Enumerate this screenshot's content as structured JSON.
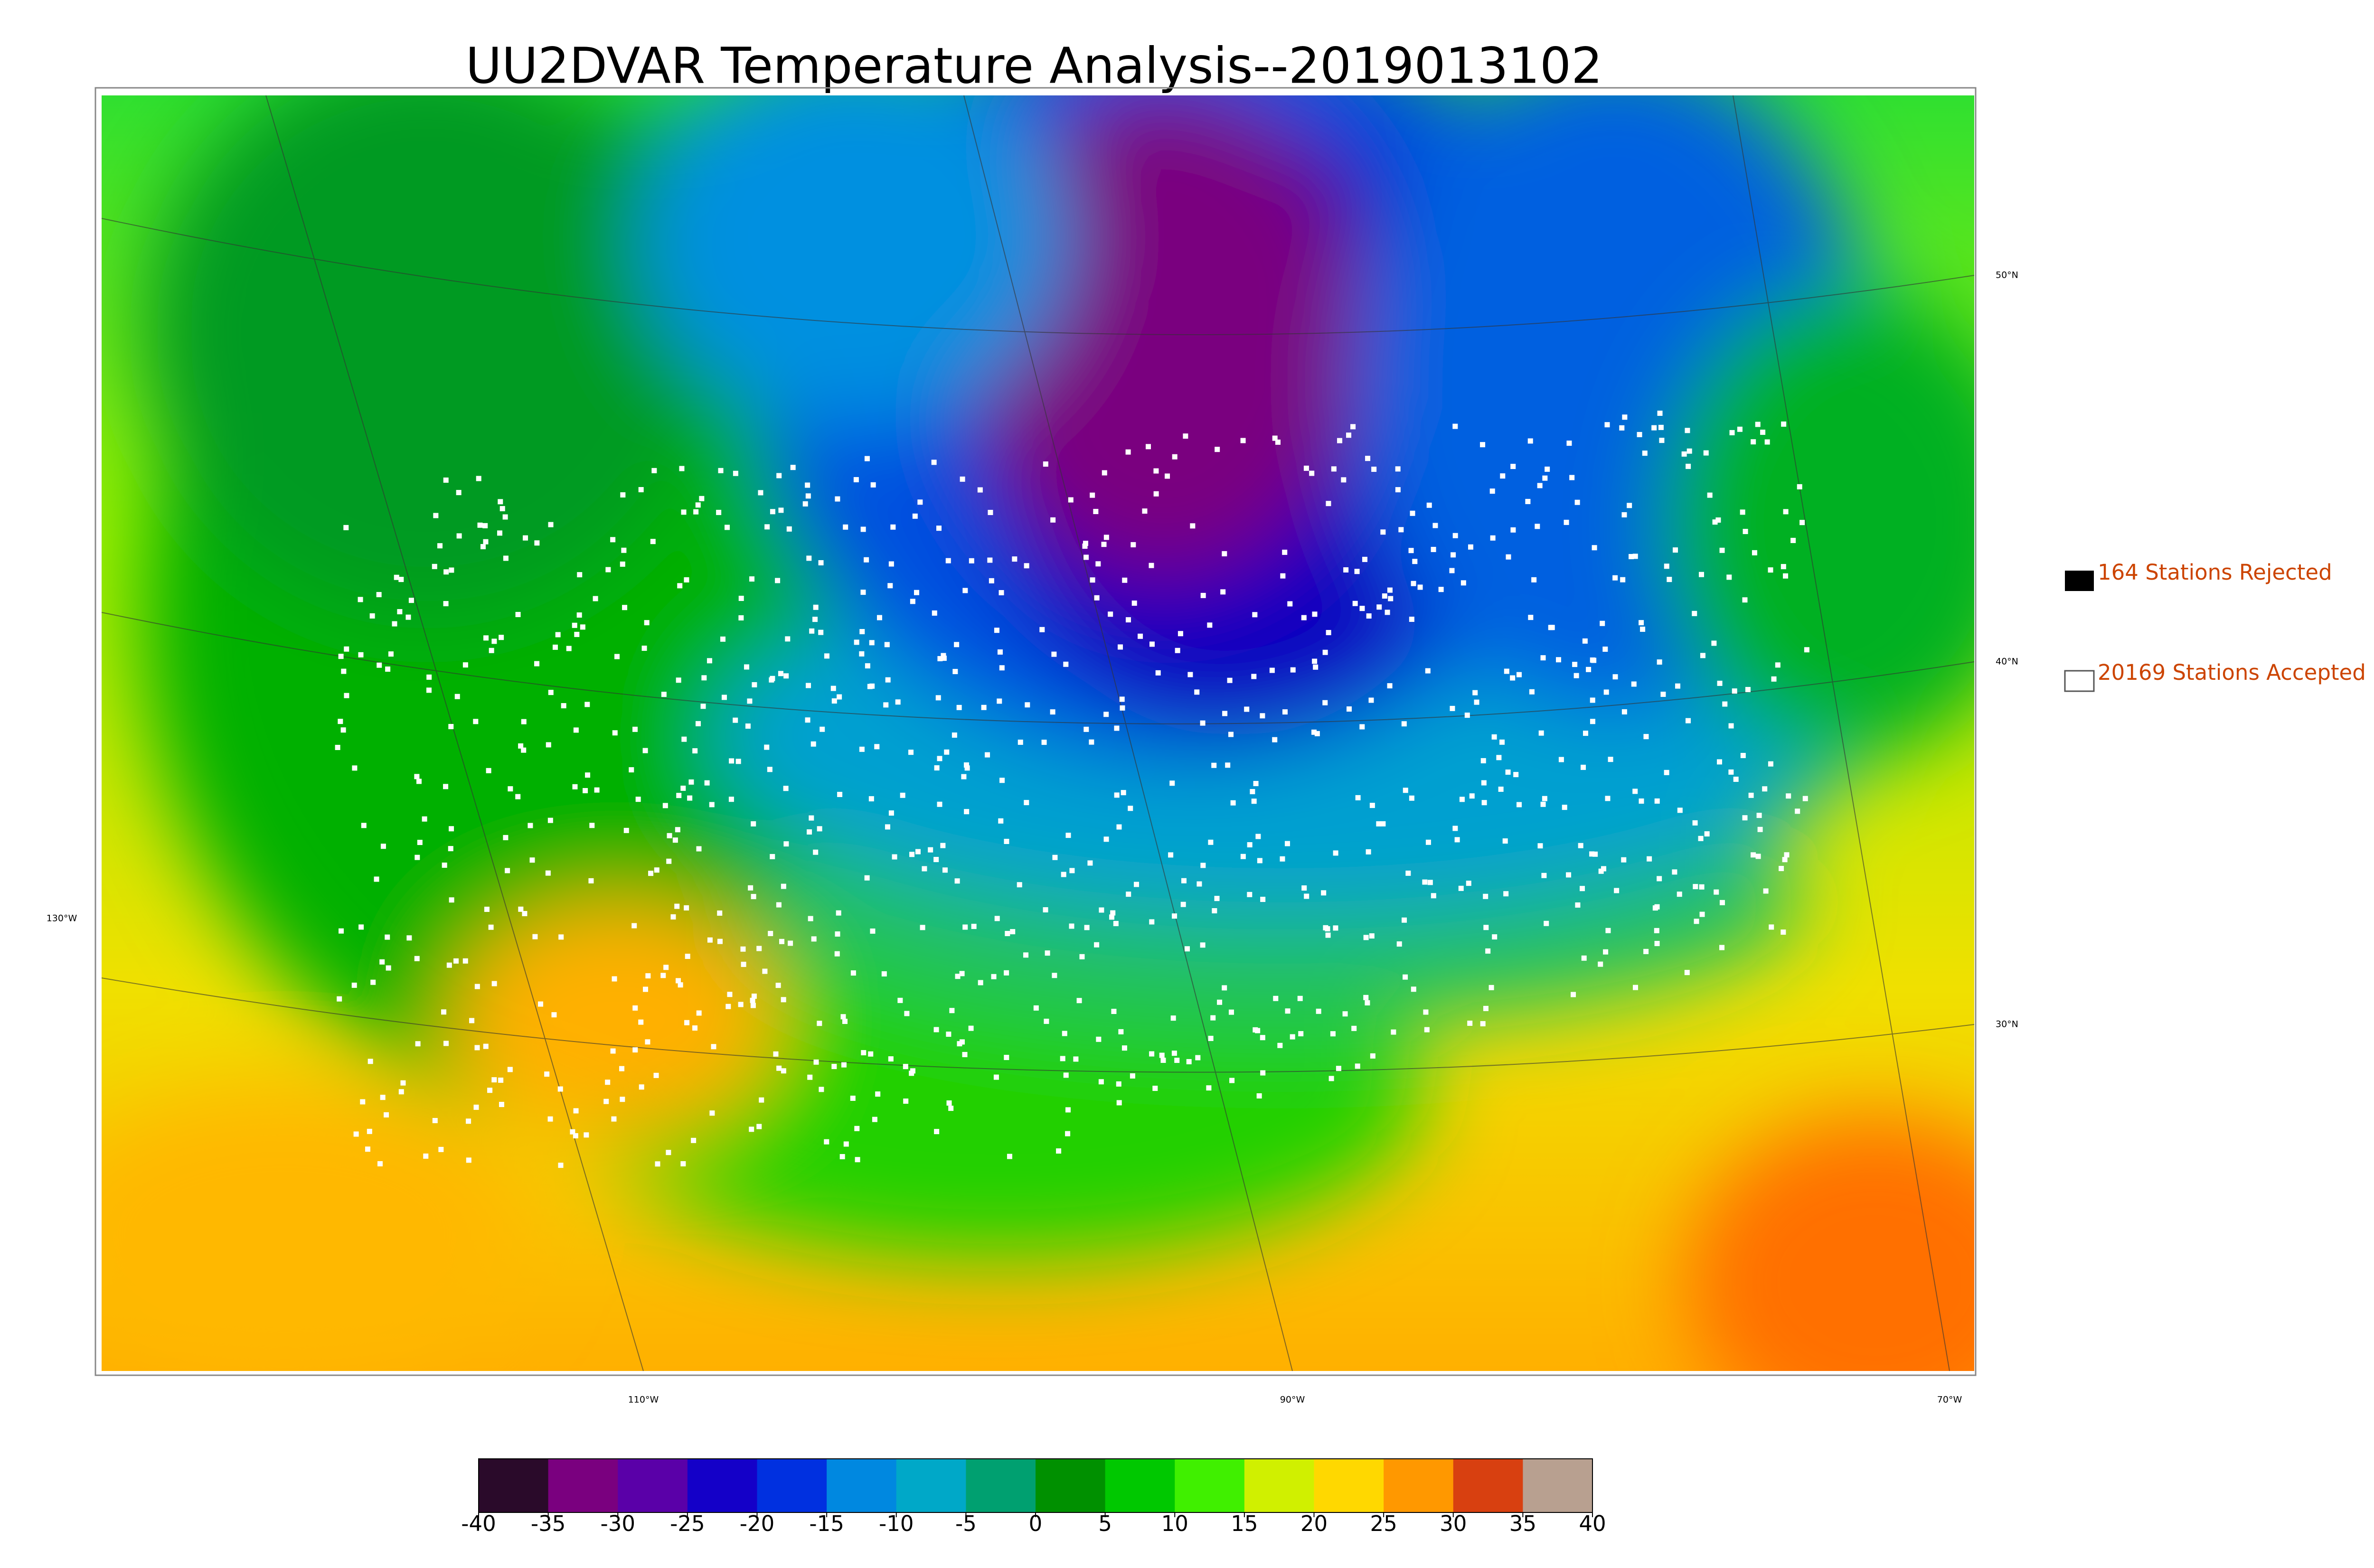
{
  "title": "UU2DVAR Temperature Analysis--2019013102",
  "map": {
    "lat_labels": [
      "50°N",
      "40°N",
      "30°N"
    ],
    "lon_labels": [
      "130°W",
      "110°W",
      "90°W",
      "70°W"
    ]
  },
  "legend": {
    "rejected": "164 Stations Rejected",
    "accepted": "20169 Stations Accepted"
  },
  "colorbar": {
    "ticks": [
      -40,
      -35,
      -30,
      -25,
      -20,
      -15,
      -10,
      -5,
      0,
      5,
      10,
      15,
      20,
      25,
      30,
      35,
      40
    ],
    "colors": [
      "#2a0a2a",
      "#7a007f",
      "#5a00a8",
      "#1400c8",
      "#0030e0",
      "#0088e0",
      "#00a8c8",
      "#00a070",
      "#009000",
      "#00c800",
      "#40f000",
      "#d0f000",
      "#ffd800",
      "#ff9800",
      "#d84010",
      "#b8a090"
    ]
  }
}
